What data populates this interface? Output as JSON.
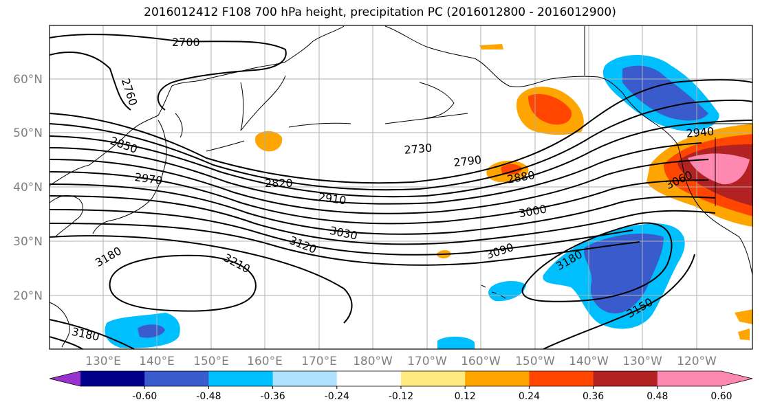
{
  "title": "2016012412 F108 700 hPa height, precipitation PC (2016012800 - 2016012900)",
  "map": {
    "lat_labels": [
      "60°N",
      "50°N",
      "40°N",
      "30°N",
      "20°N"
    ],
    "lon_labels": [
      "130°E",
      "140°E",
      "150°E",
      "160°E",
      "170°E",
      "180°W",
      "170°W",
      "160°W",
      "150°W",
      "140°W",
      "130°W",
      "120°W"
    ],
    "contour_labels": [
      "2700",
      "2760",
      "2850",
      "2970",
      "2820",
      "2730",
      "2790",
      "2880",
      "2910",
      "3000",
      "3030",
      "3120",
      "3090",
      "3180",
      "3210",
      "3180",
      "3150",
      "3180",
      "2940",
      "3060"
    ]
  },
  "colorbar": {
    "colors": [
      "#9932cc",
      "#00008b",
      "#3a5bcc",
      "#00bfff",
      "#b0e2ff",
      "#ffffff",
      "#ffea80",
      "#ffa500",
      "#ff4500",
      "#b22222",
      "#ff88b0",
      "#ff88b0"
    ],
    "tick_labels": [
      "-0.60",
      "-0.48",
      "-0.36",
      "-0.24",
      "-0.12",
      "0.12",
      "0.24",
      "0.36",
      "0.48",
      "0.60"
    ]
  },
  "colors": {
    "grid": "#b0b0b0",
    "axis_text": "#808080",
    "contour": "#000000"
  }
}
